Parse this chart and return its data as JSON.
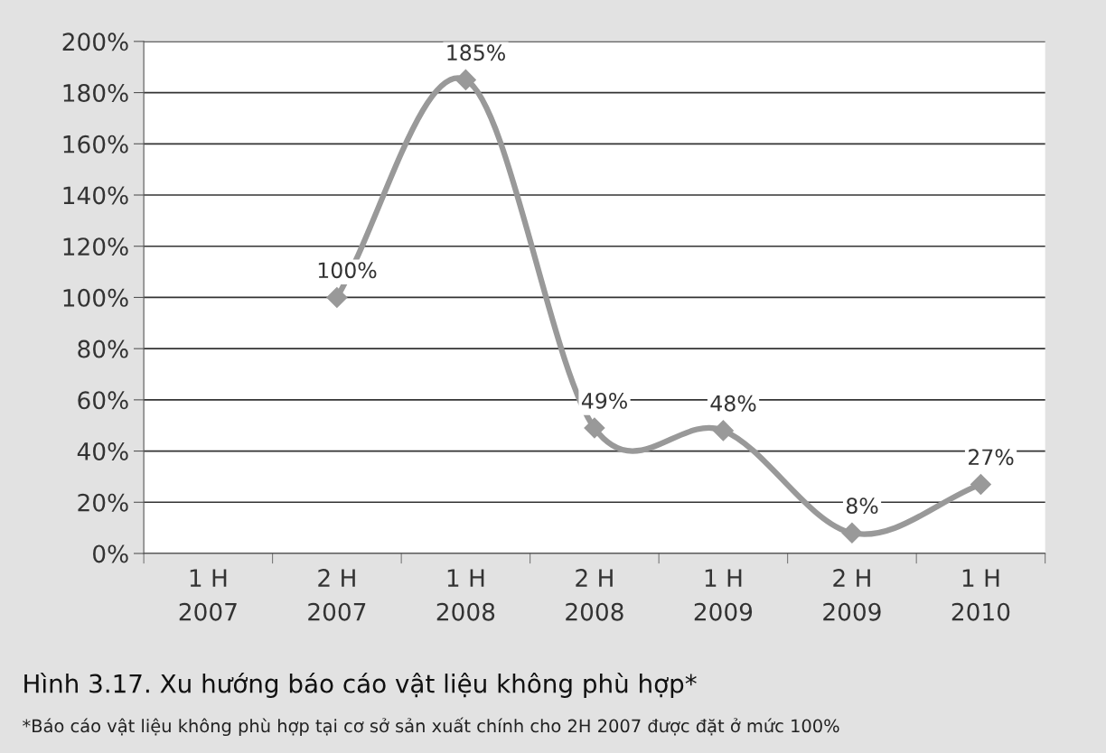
{
  "chart_data": {
    "type": "line",
    "title": "Hình 3.17. Xu hướng báo cáo vật liệu không phù hợp*",
    "annotations": [
      "*Báo cáo vật liệu không phù hợp tại cơ sở sản xuất chính cho 2H 2007 được đặt ở mức 100%"
    ],
    "categories": [
      "1 H\n2007",
      "2 H\n2007",
      "1 H\n2008",
      "2 H\n2008",
      "1 H\n2009",
      "2 H\n2009",
      "1 H\n2010"
    ],
    "series": [
      {
        "color": "#999999",
        "values": [
          null,
          100,
          185,
          49,
          48,
          8,
          27
        ],
        "value_labels": [
          null,
          "100%",
          "185%",
          "49%",
          "48%",
          "8%",
          "27%"
        ]
      }
    ],
    "ylim": [
      0,
      200
    ],
    "yticks": [
      {
        "value": 0,
        "label": "0%"
      },
      {
        "value": 20,
        "label": "20%"
      },
      {
        "value": 40,
        "label": "40%"
      },
      {
        "value": 60,
        "label": "60%"
      },
      {
        "value": 80,
        "label": "80%"
      },
      {
        "value": 100,
        "label": "100%"
      },
      {
        "value": 120,
        "label": "120%"
      },
      {
        "value": 140,
        "label": "140%"
      },
      {
        "value": 160,
        "label": "160%"
      },
      {
        "value": 180,
        "label": "180%"
      },
      {
        "value": 200,
        "label": "200%"
      }
    ],
    "grid": "y",
    "marker": "diamond",
    "line_style": "solid",
    "legend": false
  }
}
